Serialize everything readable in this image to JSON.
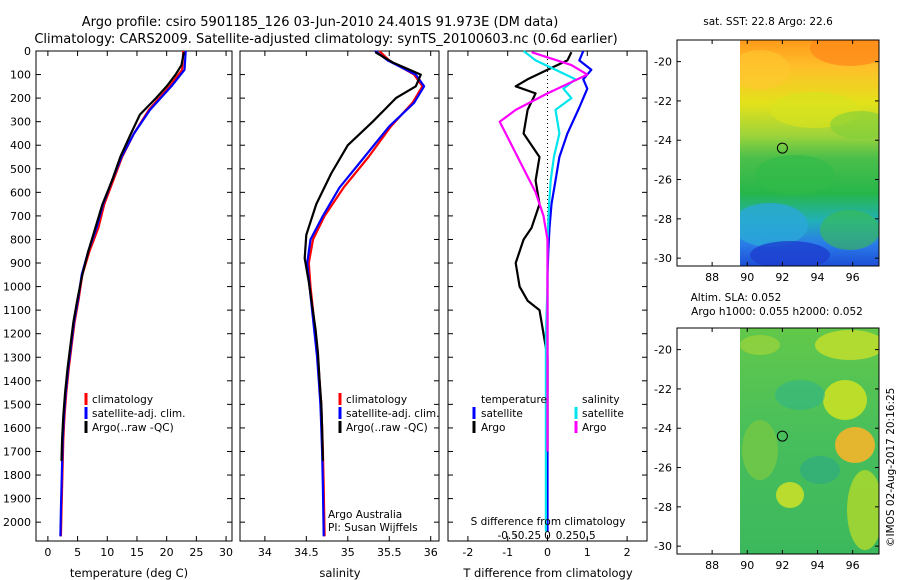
{
  "header": {
    "line1": "Argo profile: csiro 5901185_126 03-Jun-2010 24.401S 91.973E (DM data)",
    "line2": "Climatology: CARS2009. Satellite-adjusted climatology: synTS_20100603.nc (0.6d earlier)"
  },
  "colors": {
    "climatology": "#ff0000",
    "satellite_adj": "#0000ff",
    "argo": "#000000",
    "sat_diff": "#00e5ee",
    "argo_sal_diff": "#ff00ff"
  },
  "chart_data": [
    {
      "id": "temperature",
      "type": "line",
      "xlabel": "temperature (deg C)",
      "ylabel": "",
      "xlim": [
        -2,
        31
      ],
      "ylim": [
        2080,
        0
      ],
      "xticks": [
        0,
        5,
        10,
        15,
        20,
        25,
        30
      ],
      "yticks": [
        0,
        100,
        200,
        300,
        400,
        500,
        600,
        700,
        800,
        900,
        1000,
        1100,
        1200,
        1300,
        1400,
        1500,
        1600,
        1700,
        1800,
        1900,
        2000
      ],
      "legend": [
        "climatology",
        "satellite-adj. clim.",
        "Argo(..raw -QC)"
      ],
      "series": [
        {
          "name": "climatology",
          "color": "#ff0000",
          "x": [
            22.8,
            22.6,
            20.5,
            17.0,
            14.5,
            12.5,
            11.0,
            9.5,
            8.5,
            7.0,
            5.8,
            5.2,
            4.5,
            4.0,
            3.5,
            3.1,
            2.8,
            2.6,
            2.5,
            2.4,
            2.3,
            2.2
          ],
          "y": [
            0,
            80,
            150,
            250,
            350,
            450,
            550,
            650,
            750,
            850,
            950,
            1050,
            1150,
            1250,
            1350,
            1450,
            1550,
            1650,
            1750,
            1850,
            1950,
            2060
          ]
        },
        {
          "name": "satellite-adj. clim.",
          "color": "#0000ff",
          "x": [
            23.2,
            23.0,
            20.8,
            17.2,
            14.5,
            12.4,
            10.8,
            9.3,
            8.2,
            6.8,
            5.7,
            5.1,
            4.4,
            3.9,
            3.4,
            3.0,
            2.7,
            2.5,
            2.4,
            2.3,
            2.2,
            2.1
          ],
          "y": [
            0,
            80,
            150,
            250,
            350,
            450,
            550,
            650,
            750,
            850,
            950,
            1050,
            1150,
            1250,
            1350,
            1450,
            1550,
            1650,
            1750,
            1850,
            1950,
            2060
          ]
        },
        {
          "name": "Argo(..raw -QC)",
          "color": "#000000",
          "x": [
            22.9,
            22.5,
            21.5,
            20.0,
            18.2,
            15.5,
            14.0,
            12.2,
            10.8,
            9.2,
            8.0,
            6.8,
            5.8,
            5.0,
            4.3,
            3.8,
            3.3,
            2.9,
            2.6,
            2.4,
            2.3
          ],
          "y": [
            5,
            60,
            100,
            150,
            200,
            270,
            350,
            450,
            550,
            650,
            750,
            850,
            950,
            1050,
            1150,
            1250,
            1350,
            1450,
            1550,
            1650,
            1740
          ]
        }
      ]
    },
    {
      "id": "salinity",
      "type": "line",
      "xlabel": "salinity",
      "xlim": [
        33.7,
        36.1
      ],
      "ylim": [
        2080,
        0
      ],
      "xticks": [
        34,
        34.5,
        35,
        35.5,
        36
      ],
      "xticklabels": [
        "34",
        "34.5",
        "35",
        "35.5",
        "36"
      ],
      "legend": [
        "climatology",
        "satellite-adj. clim.",
        "Argo(..raw -QC)"
      ],
      "annotation": [
        "Argo Australia",
        "PI: Susan Wijffels"
      ],
      "series": [
        {
          "name": "climatology",
          "color": "#ff0000",
          "x": [
            35.38,
            35.5,
            35.8,
            35.9,
            35.78,
            35.52,
            35.25,
            34.95,
            34.72,
            34.58,
            34.53,
            34.55,
            34.58,
            34.61,
            34.64,
            34.66,
            34.68,
            34.69,
            34.7,
            34.71,
            34.72
          ],
          "y": [
            0,
            40,
            100,
            150,
            220,
            320,
            450,
            580,
            700,
            800,
            900,
            1000,
            1100,
            1200,
            1300,
            1400,
            1500,
            1600,
            1700,
            1850,
            2060
          ]
        },
        {
          "name": "satellite-adj. clim.",
          "color": "#0000ff",
          "x": [
            35.33,
            35.48,
            35.82,
            35.92,
            35.8,
            35.5,
            35.2,
            34.9,
            34.7,
            34.55,
            34.51,
            34.54,
            34.57,
            34.6,
            34.63,
            34.65,
            34.67,
            34.68,
            34.69,
            34.7,
            34.71
          ],
          "y": [
            0,
            40,
            100,
            150,
            220,
            320,
            450,
            580,
            700,
            800,
            900,
            1000,
            1100,
            1200,
            1300,
            1400,
            1500,
            1600,
            1700,
            1850,
            2060
          ]
        },
        {
          "name": "Argo(..raw -QC)",
          "color": "#000000",
          "x": [
            35.33,
            35.55,
            35.88,
            35.82,
            35.58,
            35.3,
            35.0,
            34.8,
            34.62,
            34.5,
            34.48,
            34.53,
            34.57,
            34.61,
            34.64,
            34.66,
            34.68,
            34.69,
            34.7
          ],
          "y": [
            5,
            50,
            100,
            150,
            200,
            300,
            400,
            520,
            650,
            780,
            880,
            980,
            1080,
            1180,
            1280,
            1400,
            1500,
            1600,
            1740
          ]
        }
      ]
    },
    {
      "id": "differences",
      "type": "line",
      "xlabel": "T difference from climatology",
      "xlabel_top": "S difference from climatology",
      "xlim": [
        -2.5,
        2.5
      ],
      "ylim": [
        2080,
        0
      ],
      "xticks": [
        -2,
        -1,
        0,
        1,
        2
      ],
      "sticks": [
        -0.5,
        -0.25,
        0,
        0.25,
        0.5
      ],
      "sticklabels": [
        "-0.5",
        "-0.25",
        "0",
        "0.25",
        "0.5"
      ],
      "legend_titles": [
        "temperature",
        "salinity"
      ],
      "legend": [
        "satellite",
        "Argo",
        "satellite",
        "Argo"
      ],
      "series": [
        {
          "name": "temperature satellite",
          "color": "#0000ff",
          "x": [
            0.9,
            0.8,
            1.1,
            0.9,
            1.0,
            0.9,
            0.8,
            0.5,
            0.3,
            0.2,
            0.1,
            0.05,
            0.02,
            0.0,
            0.0,
            0.0,
            0.0,
            0.0,
            0.0,
            0.0,
            0.0
          ],
          "y": [
            0,
            40,
            80,
            120,
            160,
            200,
            240,
            350,
            450,
            550,
            650,
            750,
            850,
            950,
            1050,
            1200,
            1350,
            1500,
            1650,
            1850,
            2040
          ]
        },
        {
          "name": "temperature Argo",
          "color": "#000000",
          "x": [
            0.6,
            0.5,
            0.0,
            -0.5,
            -0.8,
            -0.3,
            -0.5,
            -0.6,
            -0.2,
            -0.3,
            -0.2,
            -0.4,
            -0.6,
            -0.8,
            -0.7,
            -0.5,
            -0.2,
            0.0,
            0.0,
            0.0
          ],
          "y": [
            5,
            40,
            80,
            120,
            150,
            180,
            250,
            350,
            450,
            550,
            650,
            750,
            800,
            900,
            1000,
            1060,
            1100,
            1300,
            1500,
            1700
          ]
        },
        {
          "name": "salinity satellite",
          "color": "#00e5ee",
          "x": [
            -0.3,
            -0.15,
            0.1,
            0.35,
            0.2,
            0.3,
            0.1,
            0.15,
            0.08,
            0.04,
            0.02,
            0.0,
            0.0,
            -0.02,
            -0.02,
            -0.02,
            -0.02
          ],
          "y": [
            0,
            40,
            80,
            120,
            160,
            200,
            250,
            350,
            450,
            550,
            650,
            800,
            1000,
            1200,
            1400,
            1650,
            2040
          ]
        },
        {
          "name": "salinity Argo",
          "color": "#ff00ff",
          "x": [
            -0.2,
            0.3,
            0.5,
            0.0,
            -0.4,
            -0.6,
            -0.45,
            -0.3,
            -0.15,
            -0.05,
            0.0,
            0.0,
            0.0,
            0.0
          ],
          "y": [
            5,
            60,
            100,
            180,
            250,
            300,
            400,
            500,
            600,
            700,
            800,
            1000,
            1300,
            1700
          ]
        }
      ]
    },
    {
      "id": "sst_map",
      "type": "heatmap",
      "title": "sat. SST: 22.8 Argo: 22.6",
      "xlim": [
        86,
        97.5
      ],
      "ylim": [
        -30.4,
        -18.9
      ],
      "xticks": [
        88,
        90,
        92,
        94,
        96
      ],
      "yticks": [
        -20,
        -22,
        -24,
        -26,
        -28,
        -30
      ],
      "marker": {
        "lon": 92.0,
        "lat": -24.4
      }
    },
    {
      "id": "sla_map",
      "type": "heatmap",
      "title_line1": "Altim. SLA: 0.052",
      "title_line2": "Argo h1000: 0.055 h2000: 0.052",
      "xlim": [
        86,
        97.5
      ],
      "ylim": [
        -30.4,
        -18.9
      ],
      "xticks": [
        88,
        90,
        92,
        94,
        96
      ],
      "yticks": [
        -20,
        -22,
        -24,
        -26,
        -28,
        -30
      ],
      "marker": {
        "lon": 92.0,
        "lat": -24.4
      }
    }
  ],
  "footer": {
    "stamp": "©IMOS 02-Aug-2017 20:16:25"
  }
}
